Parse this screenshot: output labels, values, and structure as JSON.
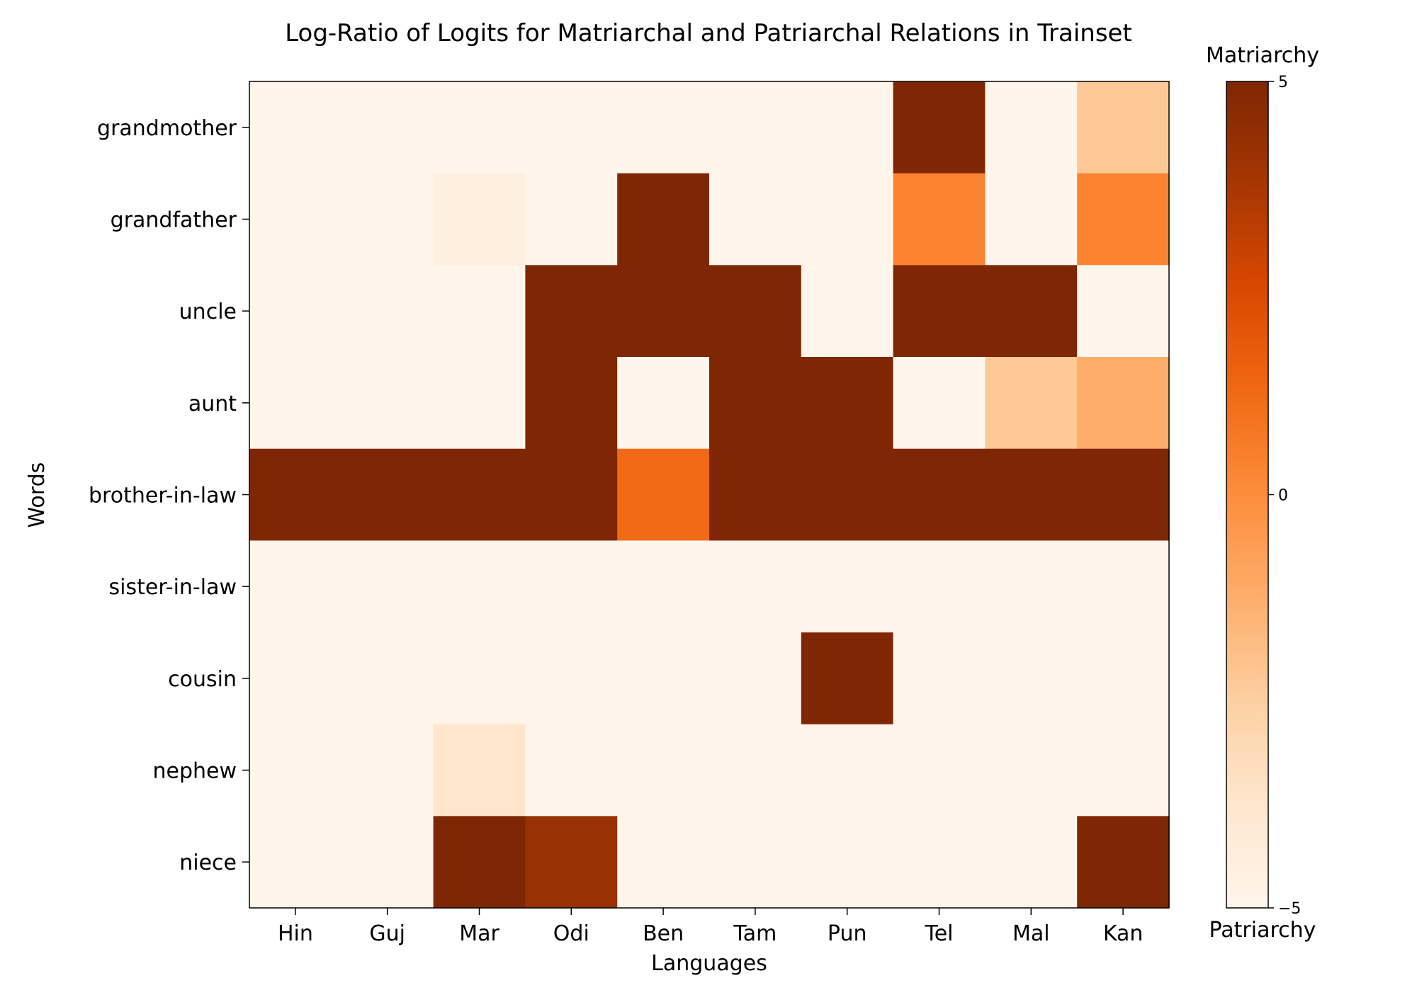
{
  "chart_data": {
    "type": "heatmap",
    "title": "Log-Ratio of Logits for Matriarchal and Patriarchal Relations in Trainset",
    "xlabel": "Languages",
    "ylabel": "Words",
    "x_categories": [
      "Hin",
      "Guj",
      "Mar",
      "Odi",
      "Ben",
      "Tam",
      "Pun",
      "Tel",
      "Mal",
      "Kan"
    ],
    "y_categories": [
      "grandmother",
      "grandfather",
      "uncle",
      "aunt",
      "brother-in-law",
      "sister-in-law",
      "cousin",
      "nephew",
      "niece"
    ],
    "values": [
      [
        -5,
        -5,
        -5,
        -5,
        -5,
        -5,
        -5,
        5,
        -5,
        -2.2
      ],
      [
        -5,
        -5,
        -4.5,
        -5,
        5,
        -5,
        -5,
        0.3,
        -5,
        0.3
      ],
      [
        -5,
        -5,
        -5,
        5,
        5,
        5,
        -5,
        5,
        5,
        -5
      ],
      [
        -5,
        -5,
        -5,
        5,
        -5,
        5,
        5,
        -5,
        -2.2,
        -1.2
      ],
      [
        5,
        5,
        5,
        5,
        1.2,
        5,
        5,
        5,
        5,
        5
      ],
      [
        -5,
        -5,
        -5,
        -5,
        -5,
        -5,
        -5,
        -5,
        -5,
        -5
      ],
      [
        -5,
        -5,
        -5,
        -5,
        -5,
        -5,
        5,
        -5,
        -5,
        -5
      ],
      [
        -5,
        -5,
        -3.7,
        -5,
        -5,
        -5,
        -5,
        -5,
        -5,
        -5
      ],
      [
        -5,
        -5,
        5,
        4.2,
        -5,
        -5,
        -5,
        -5,
        -5,
        5
      ]
    ],
    "colorscale": "Oranges",
    "vmin": -5,
    "vmax": 5,
    "colorbar": {
      "top_label": "Matriarchy",
      "bottom_label": "Patriarchy",
      "ticks": [
        5,
        0,
        -5
      ],
      "tick_labels": [
        "5",
        "0",
        "−5"
      ]
    }
  }
}
